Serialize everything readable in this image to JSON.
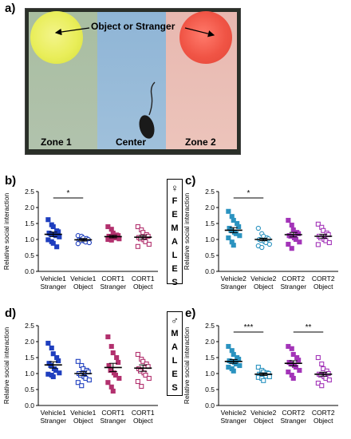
{
  "panel_a": {
    "letter": "a)",
    "callout": "Object or Stranger",
    "zone1": "Zone 1",
    "center": "Center",
    "zone2": "Zone 2"
  },
  "panel_letters": {
    "b": "b)",
    "c": "c)",
    "d": "d)",
    "e": "e)"
  },
  "gender": {
    "female_symbol": "♀",
    "female_letters": [
      "F",
      "E",
      "M",
      "A",
      "L",
      "E",
      "S"
    ],
    "male_symbol": "♂",
    "male_letters": [
      "M",
      "A",
      "L",
      "E",
      "S"
    ]
  },
  "colors": {
    "vehicle1_stranger": "#1f3fbf",
    "vehicle1_object": "#1f3fbf",
    "cort1_stranger": "#b2316e",
    "cort1_object": "#b2316e",
    "vehicle2_stranger": "#2b93c0",
    "vehicle2_object": "#2b93c0",
    "cort2_stranger": "#a334b8",
    "cort2_object": "#a334b8"
  },
  "chart_data": [
    {
      "panel": "b",
      "type": "scatter",
      "ylabel": "Relative social interaction",
      "ylim": [
        0,
        2.5
      ],
      "yticks": [
        "0.0",
        "0.5",
        "1.0",
        "1.5",
        "2.0",
        "2.5"
      ],
      "groups": [
        {
          "label1": "Vehicle1",
          "label2": "Stranger",
          "marker": "square",
          "filled": true,
          "mean": 1.16,
          "sem": 0.07,
          "values": [
            1.62,
            1.46,
            1.4,
            1.27,
            1.24,
            1.2,
            1.17,
            1.15,
            1.12,
            1.08,
            0.99,
            0.93,
            0.88,
            0.77
          ]
        },
        {
          "label1": "Vehicle1",
          "label2": "Object",
          "marker": "circle",
          "filled": false,
          "mean": 0.99,
          "sem": 0.04,
          "values": [
            1.12,
            1.1,
            1.05,
            1.03,
            1.0,
            0.98,
            0.96,
            0.95,
            0.92,
            0.9,
            0.87
          ]
        },
        {
          "label1": "CORT1",
          "label2": "Stranger",
          "marker": "square",
          "filled": true,
          "mean": 1.09,
          "sem": 0.04,
          "values": [
            1.4,
            1.32,
            1.2,
            1.14,
            1.12,
            1.1,
            1.08,
            1.06,
            1.05,
            1.02,
            1.0,
            0.98
          ]
        },
        {
          "label1": "CORT1",
          "label2": "Object",
          "marker": "square",
          "filled": false,
          "mean": 1.07,
          "sem": 0.06,
          "values": [
            1.4,
            1.3,
            1.22,
            1.15,
            1.1,
            1.06,
            1.02,
            0.99,
            0.93,
            0.85,
            0.78
          ]
        }
      ],
      "significance": [
        {
          "from": 0,
          "to": 1,
          "label": "*"
        }
      ]
    },
    {
      "panel": "c",
      "type": "scatter",
      "ylabel": "Relative social interaction",
      "ylim": [
        0,
        2.5
      ],
      "yticks": [
        "0.0",
        "0.5",
        "1.0",
        "1.5",
        "2.0",
        "2.5"
      ],
      "groups": [
        {
          "label1": "Vehicle2",
          "label2": "Stranger",
          "marker": "square",
          "filled": true,
          "mean": 1.29,
          "sem": 0.08,
          "values": [
            1.88,
            1.72,
            1.6,
            1.5,
            1.4,
            1.35,
            1.28,
            1.22,
            1.18,
            1.12,
            1.05,
            0.92,
            0.82
          ]
        },
        {
          "label1": "Vehicle2",
          "label2": "Object",
          "marker": "circle",
          "filled": false,
          "mean": 1.0,
          "sem": 0.04,
          "values": [
            1.35,
            1.18,
            1.1,
            1.05,
            1.02,
            1.0,
            0.97,
            0.93,
            0.9,
            0.85,
            0.8,
            0.75
          ]
        },
        {
          "label1": "CORT2",
          "label2": "Stranger",
          "marker": "square",
          "filled": true,
          "mean": 1.15,
          "sem": 0.07,
          "values": [
            1.6,
            1.45,
            1.3,
            1.22,
            1.18,
            1.12,
            1.1,
            1.05,
            1.0,
            0.92,
            0.85,
            0.72
          ]
        },
        {
          "label1": "CORT2",
          "label2": "Object",
          "marker": "square",
          "filled": false,
          "mean": 1.1,
          "sem": 0.06,
          "values": [
            1.48,
            1.38,
            1.28,
            1.2,
            1.15,
            1.1,
            1.05,
            1.0,
            0.96,
            0.9,
            0.84
          ]
        }
      ],
      "significance": [
        {
          "from": 0,
          "to": 1,
          "label": "*"
        }
      ]
    },
    {
      "panel": "d",
      "type": "scatter",
      "ylabel": "Relative social interaction",
      "ylim": [
        0,
        2.5
      ],
      "yticks": [
        "0.0",
        "0.5",
        "1.0",
        "1.5",
        "2.0",
        "2.5"
      ],
      "groups": [
        {
          "label1": "Vehicle1",
          "label2": "Stranger",
          "marker": "square",
          "filled": true,
          "mean": 1.27,
          "sem": 0.1,
          "values": [
            1.95,
            1.8,
            1.62,
            1.5,
            1.4,
            1.32,
            1.25,
            1.15,
            1.1,
            1.02,
            0.98,
            0.95,
            0.9
          ]
        },
        {
          "label1": "Vehicle1",
          "label2": "Object",
          "marker": "square",
          "filled": false,
          "mean": 1.0,
          "sem": 0.06,
          "values": [
            1.38,
            1.25,
            1.15,
            1.1,
            1.05,
            1.0,
            0.95,
            0.9,
            0.85,
            0.8,
            0.72,
            0.62
          ]
        },
        {
          "label1": "CORT1",
          "label2": "Stranger",
          "marker": "square",
          "filled": true,
          "mean": 1.19,
          "sem": 0.13,
          "values": [
            2.15,
            1.85,
            1.65,
            1.5,
            1.35,
            1.25,
            1.1,
            1.02,
            0.95,
            0.85,
            0.72,
            0.58,
            0.45
          ]
        },
        {
          "label1": "CORT1",
          "label2": "Object",
          "marker": "square",
          "filled": false,
          "mean": 1.17,
          "sem": 0.1,
          "values": [
            1.6,
            1.45,
            1.38,
            1.3,
            1.22,
            1.15,
            1.08,
            1.02,
            0.95,
            0.85,
            0.75,
            0.6
          ]
        }
      ],
      "significance": []
    },
    {
      "panel": "e",
      "type": "scatter",
      "ylabel": "Relative social interaction",
      "ylim": [
        0,
        2.5
      ],
      "yticks": [
        "0.0",
        "0.5",
        "1.0",
        "1.5",
        "2.0",
        "2.5"
      ],
      "groups": [
        {
          "label1": "Vehicle2",
          "label2": "Stranger",
          "marker": "square",
          "filled": true,
          "mean": 1.38,
          "sem": 0.06,
          "values": [
            1.85,
            1.72,
            1.6,
            1.5,
            1.45,
            1.4,
            1.38,
            1.35,
            1.3,
            1.25,
            1.2,
            1.15,
            1.08
          ]
        },
        {
          "label1": "Vehicle2",
          "label2": "Object",
          "marker": "square",
          "filled": false,
          "mean": 0.98,
          "sem": 0.04,
          "values": [
            1.2,
            1.1,
            1.05,
            1.02,
            1.0,
            0.98,
            0.96,
            0.95,
            0.92,
            0.9,
            0.88,
            0.85,
            0.78
          ]
        },
        {
          "label1": "CORT2",
          "label2": "Stranger",
          "marker": "square",
          "filled": true,
          "mean": 1.32,
          "sem": 0.08,
          "values": [
            1.85,
            1.78,
            1.6,
            1.5,
            1.42,
            1.35,
            1.3,
            1.25,
            1.2,
            1.1,
            1.05,
            0.95,
            0.85
          ]
        },
        {
          "label1": "CORT2",
          "label2": "Object",
          "marker": "square",
          "filled": false,
          "mean": 0.98,
          "sem": 0.06,
          "values": [
            1.5,
            1.3,
            1.15,
            1.08,
            1.0,
            0.98,
            0.95,
            0.9,
            0.85,
            0.8,
            0.7,
            0.62
          ]
        }
      ],
      "significance": [
        {
          "from": 0,
          "to": 1,
          "label": "***"
        },
        {
          "from": 2,
          "to": 3,
          "label": "**"
        }
      ]
    }
  ]
}
